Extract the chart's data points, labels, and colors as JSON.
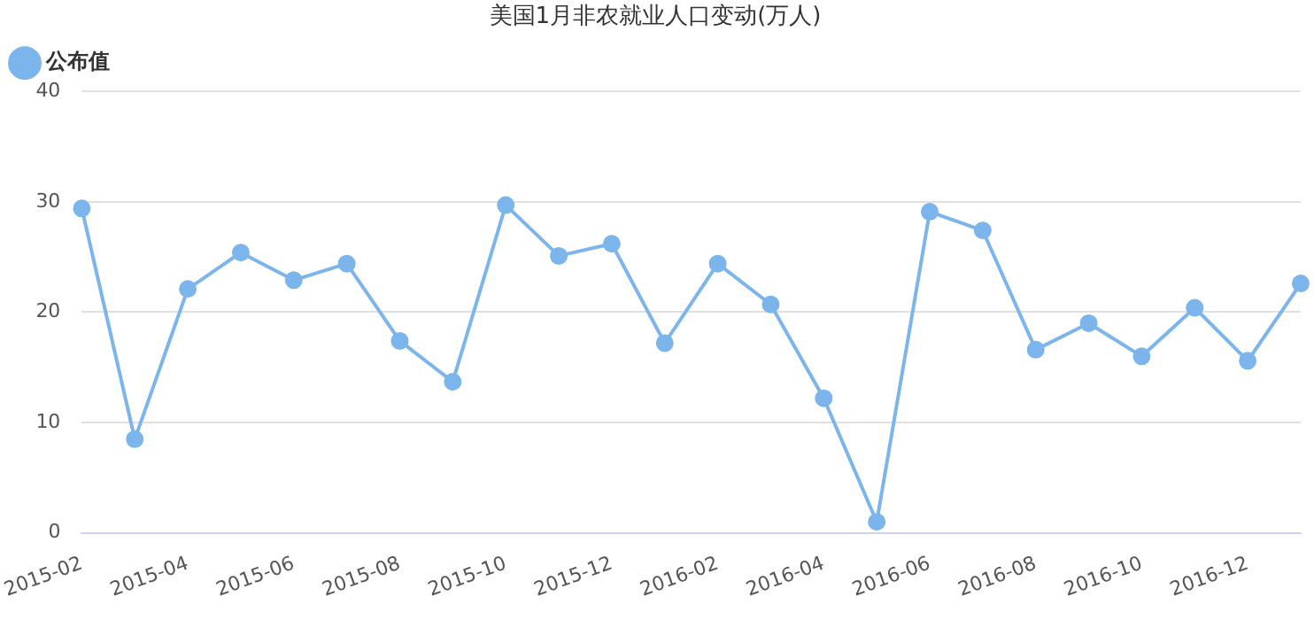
{
  "chart_data": {
    "type": "line",
    "title": "美国1月非农就业人口变动(万人)",
    "categories": [
      "2015-02",
      null,
      "2015-04",
      null,
      "2015-06",
      null,
      "2015-08",
      null,
      "2015-10",
      null,
      "2015-12",
      null,
      "2016-02",
      null,
      "2016-04",
      null,
      "2016-06",
      null,
      "2016-08",
      null,
      "2016-10",
      null,
      "2016-12",
      null
    ],
    "series": [
      {
        "name": "公布值",
        "color": "#7cb5ec",
        "values": [
          29.4,
          8.5,
          22.1,
          25.4,
          22.9,
          24.4,
          17.4,
          13.7,
          29.7,
          25.1,
          26.2,
          17.2,
          24.4,
          20.7,
          12.2,
          1.0,
          29.1,
          27.4,
          16.6,
          19.0,
          16.0,
          20.4,
          15.6,
          22.6
        ]
      }
    ],
    "ylim": [
      0,
      40
    ],
    "yticks": [
      0,
      10,
      20,
      30,
      40
    ],
    "grid": "y",
    "legend": "top left",
    "marker": "circle",
    "line_style": "solid"
  }
}
